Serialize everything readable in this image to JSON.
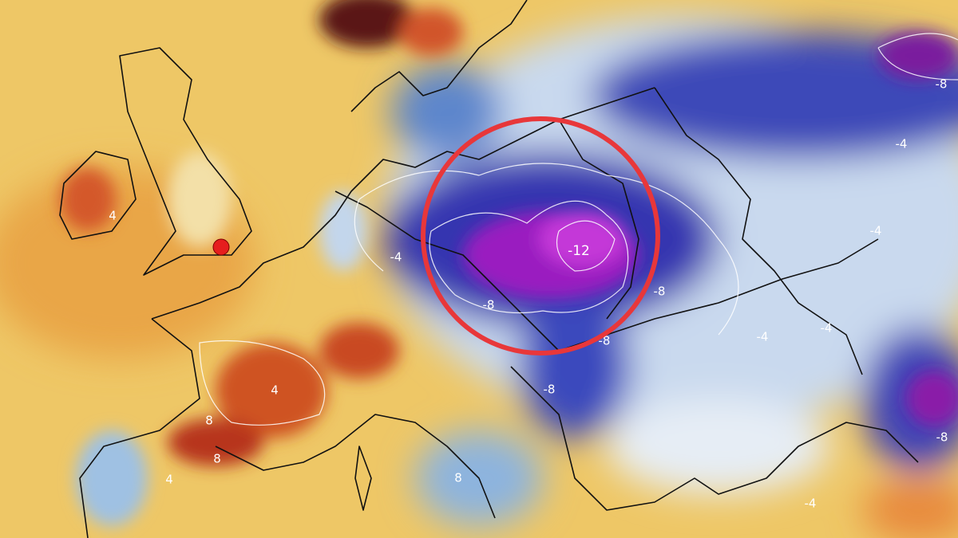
{
  "map": {
    "contour_labels": [
      -12,
      -8,
      -8,
      -8,
      -8,
      -8,
      -8,
      -4,
      -4,
      -4,
      -4,
      -4,
      -4,
      4,
      4,
      8,
      8,
      4,
      8
    ]
  }
}
